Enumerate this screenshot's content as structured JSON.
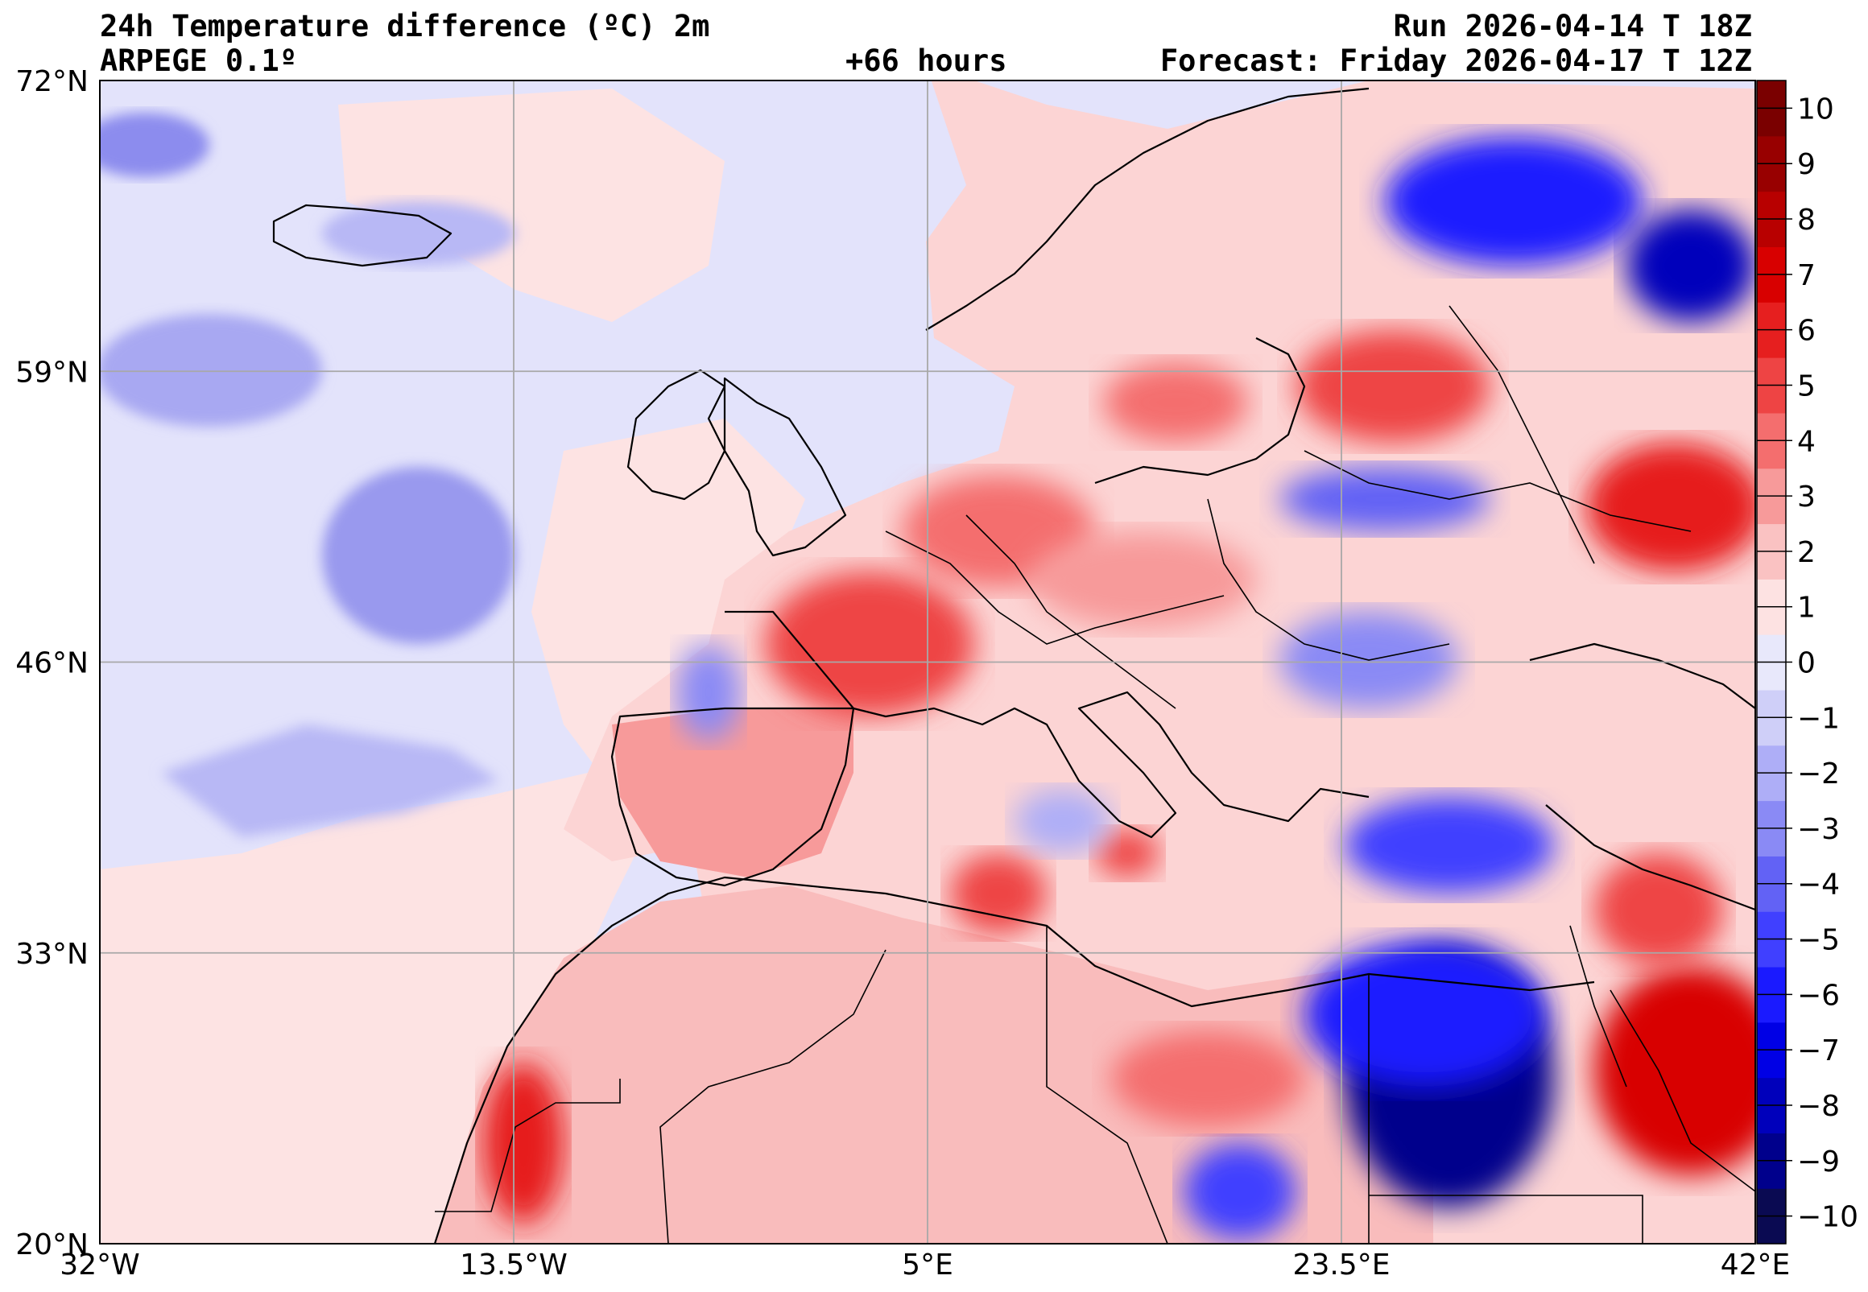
{
  "header": {
    "title": "24h Temperature difference (ºC) 2m",
    "model": "ARPEGE 0.1º",
    "lead_time": "+66 hours",
    "run": "Run 2026-04-14 T 18Z",
    "forecast": "Forecast: Friday 2026-04-17 T 12Z"
  },
  "map": {
    "lon_range": [
      -32,
      42
    ],
    "lat_range": [
      20,
      72
    ],
    "lon_ticks": [
      -32,
      -13.5,
      5,
      23.5,
      42
    ],
    "lat_ticks": [
      20,
      33,
      46,
      59,
      72
    ],
    "lon_labels": [
      "32°W",
      "13.5°W",
      "5°E",
      "23.5°E",
      "42°E"
    ],
    "lat_labels": [
      "20°N",
      "33°N",
      "46°N",
      "59°N",
      "72°N"
    ],
    "grid": true
  },
  "colorbar": {
    "levels": [
      -10,
      -9,
      -8,
      -7,
      -6,
      -5,
      -4,
      -3,
      -2,
      -1,
      0,
      1,
      2,
      3,
      4,
      5,
      6,
      7,
      8,
      9,
      10
    ],
    "labels": [
      "−10",
      "−9",
      "−8",
      "−7",
      "−6",
      "−5",
      "−4",
      "−3",
      "−2",
      "−1",
      "0",
      "1",
      "2",
      "3",
      "4",
      "5",
      "6",
      "7",
      "8",
      "9",
      "10"
    ],
    "colors": [
      "#0a0a52",
      "#00008c",
      "#0000bb",
      "#0000e5",
      "#1a1aff",
      "#4040ff",
      "#6262f5",
      "#8a8af5",
      "#aeaef7",
      "#cfcff8",
      "#e8e8fb",
      "#fde2e2",
      "#fac2c2",
      "#f79a9a",
      "#f46e6e",
      "#ee4444",
      "#e61f1f",
      "#d80000",
      "#b80000",
      "#980000",
      "#7a0000"
    ]
  }
}
